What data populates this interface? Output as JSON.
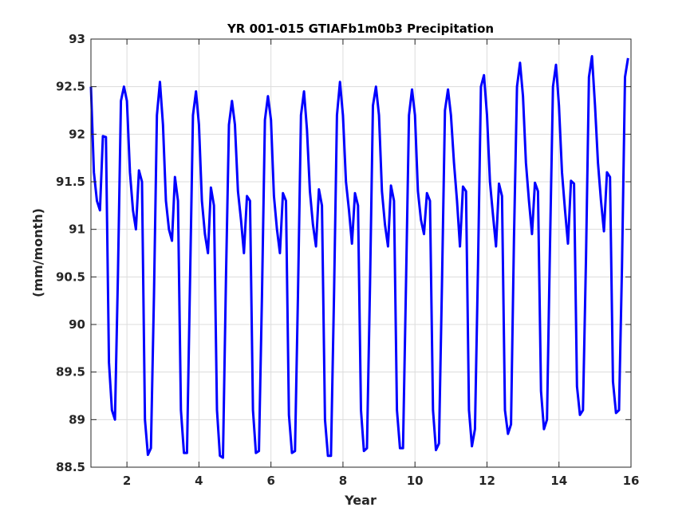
{
  "chart_data": {
    "type": "line",
    "title": "YR 001-015 GTIAFb1m0b3 Precipitation",
    "xlabel": "Year",
    "ylabel": "(mm/month)",
    "xlim": [
      1,
      16
    ],
    "ylim": [
      88.5,
      93
    ],
    "grid": true,
    "xticks": [
      2,
      4,
      6,
      8,
      10,
      12,
      14,
      16
    ],
    "yticks": [
      88.5,
      89,
      89.5,
      90,
      90.5,
      91,
      91.5,
      92,
      92.5,
      93
    ],
    "series": [
      {
        "color": "#0000ff",
        "x": [
          1.0,
          1.083,
          1.167,
          1.25,
          1.333,
          1.417,
          1.5,
          1.583,
          1.667,
          1.75,
          1.833,
          1.917,
          2.0,
          2.083,
          2.167,
          2.25,
          2.333,
          2.417,
          2.5,
          2.583,
          2.667,
          2.75,
          2.833,
          2.917,
          3.0,
          3.083,
          3.167,
          3.25,
          3.333,
          3.417,
          3.5,
          3.583,
          3.667,
          3.75,
          3.833,
          3.917,
          4.0,
          4.083,
          4.167,
          4.25,
          4.333,
          4.417,
          4.5,
          4.583,
          4.667,
          4.75,
          4.833,
          4.917,
          5.0,
          5.083,
          5.167,
          5.25,
          5.333,
          5.417,
          5.5,
          5.583,
          5.667,
          5.75,
          5.833,
          5.917,
          6.0,
          6.083,
          6.167,
          6.25,
          6.333,
          6.417,
          6.5,
          6.583,
          6.667,
          6.75,
          6.833,
          6.917,
          7.0,
          7.083,
          7.167,
          7.25,
          7.333,
          7.417,
          7.5,
          7.583,
          7.667,
          7.75,
          7.833,
          7.917,
          8.0,
          8.083,
          8.167,
          8.25,
          8.333,
          8.417,
          8.5,
          8.583,
          8.667,
          8.75,
          8.833,
          8.917,
          9.0,
          9.083,
          9.167,
          9.25,
          9.333,
          9.417,
          9.5,
          9.583,
          9.667,
          9.75,
          9.833,
          9.917,
          10.0,
          10.083,
          10.167,
          10.25,
          10.333,
          10.417,
          10.5,
          10.583,
          10.667,
          10.75,
          10.833,
          10.917,
          11.0,
          11.083,
          11.167,
          11.25,
          11.333,
          11.417,
          11.5,
          11.583,
          11.667,
          11.75,
          11.833,
          11.917,
          12.0,
          12.083,
          12.167,
          12.25,
          12.333,
          12.417,
          12.5,
          12.583,
          12.667,
          12.75,
          12.833,
          12.917,
          13.0,
          13.083,
          13.167,
          13.25,
          13.333,
          13.417,
          13.5,
          13.583,
          13.667,
          13.75,
          13.833,
          13.917,
          14.0,
          14.083,
          14.167,
          14.25,
          14.333,
          14.417,
          14.5,
          14.583,
          14.667,
          14.75,
          14.833,
          14.917,
          15.0,
          15.083,
          15.167,
          15.25,
          15.333,
          15.417,
          15.5,
          15.583,
          15.667,
          15.75,
          15.833,
          15.917
        ],
        "y": [
          92.5,
          91.6,
          91.3,
          91.2,
          91.98,
          91.97,
          89.6,
          89.1,
          89.0,
          90.5,
          92.35,
          92.5,
          92.35,
          91.6,
          91.2,
          91.0,
          91.62,
          91.5,
          89.0,
          88.63,
          88.7,
          90.3,
          92.2,
          92.55,
          92.1,
          91.3,
          91.0,
          90.88,
          91.55,
          91.3,
          89.1,
          88.65,
          88.65,
          90.4,
          92.2,
          92.45,
          92.1,
          91.3,
          90.95,
          90.75,
          91.44,
          91.25,
          89.1,
          88.62,
          88.6,
          90.5,
          92.1,
          92.35,
          92.1,
          91.4,
          91.1,
          90.75,
          91.35,
          91.3,
          89.1,
          88.65,
          88.67,
          90.3,
          92.15,
          92.4,
          92.15,
          91.35,
          91.0,
          90.75,
          91.38,
          91.3,
          89.05,
          88.65,
          88.67,
          90.3,
          92.2,
          92.45,
          92.05,
          91.4,
          91.05,
          90.82,
          91.42,
          91.25,
          89.0,
          88.62,
          88.62,
          90.3,
          92.2,
          92.55,
          92.2,
          91.5,
          91.2,
          90.85,
          91.38,
          91.25,
          89.1,
          88.67,
          88.7,
          90.4,
          92.3,
          92.5,
          92.2,
          91.4,
          91.05,
          90.82,
          91.46,
          91.3,
          89.1,
          88.7,
          88.7,
          90.4,
          92.2,
          92.47,
          92.2,
          91.4,
          91.1,
          90.95,
          91.38,
          91.3,
          89.1,
          88.68,
          88.75,
          90.4,
          92.25,
          92.47,
          92.2,
          91.7,
          91.3,
          90.82,
          91.45,
          91.4,
          89.1,
          88.72,
          88.9,
          90.6,
          92.5,
          92.62,
          92.2,
          91.5,
          91.15,
          90.82,
          91.48,
          91.35,
          89.1,
          88.85,
          88.95,
          90.9,
          92.5,
          92.75,
          92.4,
          91.7,
          91.3,
          90.95,
          91.49,
          91.4,
          89.3,
          88.9,
          89.0,
          90.8,
          92.5,
          92.73,
          92.3,
          91.6,
          91.2,
          90.85,
          91.51,
          91.48,
          89.35,
          89.05,
          89.1,
          90.7,
          92.6,
          92.82,
          92.3,
          91.7,
          91.3,
          90.98,
          91.6,
          91.55,
          89.4,
          89.07,
          89.1,
          90.6,
          92.6,
          92.8
        ]
      }
    ]
  }
}
